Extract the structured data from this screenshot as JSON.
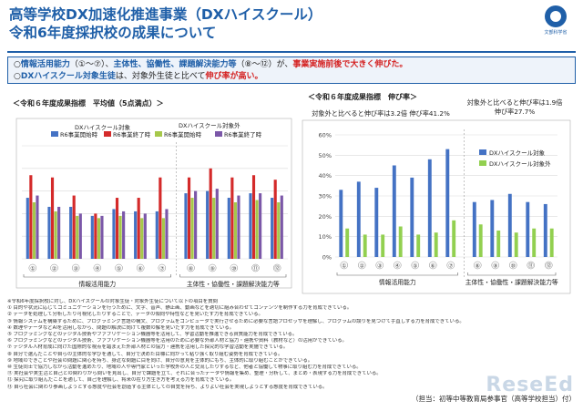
{
  "header": {
    "title_line1": "高等学校DX加速化推進事業（DXハイスクール）",
    "title_line2": "令和6年度採択校の成果について",
    "logo_text": "文部科学省"
  },
  "summary": {
    "line1_a": "○",
    "line1_b": "情報活用能力",
    "line1_c": "（①〜⑦）、",
    "line1_d": "主体性、協働性、課題解決能力等",
    "line1_e": "（⑧〜⑫）が、",
    "line1_f": "事業実施前後で大きく伸びた。",
    "line2_a": "○",
    "line2_b": "DXハイスクール対象生徒",
    "line2_c": "は、対象外生徒と比べて",
    "line2_d": "伸び率が高い。"
  },
  "left_panel": {
    "title": "＜令和６年度成果指標　平均値（5点満点）＞",
    "legend_title_a": "DXハイスクール対象",
    "legend_title_b": "DXハイスクール対象外",
    "group_labels": [
      "情報活用能力",
      "主体性・協働性・課題解決能力等"
    ]
  },
  "right_panel": {
    "title": "＜令和６年度成果指標　伸び率＞",
    "callout_a": "対象外と比べると伸び率は3.2倍  伸び率41.2%",
    "callout_b_1": "対象外と比べると伸び率は1.9倍",
    "callout_b_2": "伸び率27.7%",
    "group_labels": [
      "情報活用能力",
      "主体性・協働性・課題解決能力等"
    ]
  },
  "chart_data": [
    {
      "type": "bar",
      "title": "令和６年度成果指標　平均値（5点満点）",
      "categories": [
        "①",
        "②",
        "③",
        "④",
        "⑤",
        "⑥",
        "⑦",
        "⑧",
        "⑨",
        "⑩",
        "⑪",
        "⑫"
      ],
      "ylim": [
        0,
        5
      ],
      "grid": true,
      "legend_position": "top",
      "series": [
        {
          "name": "R6事業開始時",
          "color": "#4472c4",
          "values": [
            2.7,
            2.3,
            2.3,
            1.9,
            2.2,
            2.1,
            2.1,
            2.9,
            3.0,
            2.7,
            2.9,
            2.7
          ]
        },
        {
          "name": "R6事業終了時",
          "color": "#d42a2a",
          "values": [
            3.7,
            3.6,
            2.8,
            2.0,
            2.7,
            2.7,
            3.6,
            3.6,
            4.0,
            3.6,
            3.7,
            3.5
          ]
        },
        {
          "name": "R6事業開始時",
          "color": "#a6c84a",
          "values": [
            2.5,
            2.1,
            1.9,
            1.8,
            1.9,
            1.8,
            1.8,
            2.7,
            2.7,
            2.5,
            2.6,
            2.5
          ]
        },
        {
          "name": "R6事業終了時",
          "color": "#7b57a8",
          "values": [
            2.8,
            2.3,
            2.0,
            1.9,
            2.1,
            2.0,
            2.2,
            3.0,
            3.1,
            2.8,
            2.9,
            2.8
          ]
        }
      ]
    },
    {
      "type": "bar",
      "title": "令和６年度成果指標　伸び率",
      "categories": [
        "①",
        "②",
        "③",
        "④",
        "⑤",
        "⑥",
        "⑦",
        "⑧",
        "⑨",
        "⑩",
        "⑪",
        "⑫"
      ],
      "ylim": [
        0,
        0.6
      ],
      "yticks": [
        "0%",
        "10%",
        "20%",
        "30%",
        "40%",
        "50%",
        "60%"
      ],
      "grid": true,
      "legend_position": "top-right",
      "series": [
        {
          "name": "DXハイスクール対象",
          "color": "#4472c4",
          "values": [
            0.33,
            0.37,
            0.34,
            0.45,
            0.39,
            0.48,
            0.53,
            0.27,
            0.28,
            0.31,
            0.27,
            0.26
          ]
        },
        {
          "name": "DXハイスクール対象外",
          "color": "#92d050",
          "values": [
            0.14,
            0.11,
            0.11,
            0.15,
            0.11,
            0.12,
            0.18,
            0.16,
            0.13,
            0.12,
            0.14,
            0.14
          ]
        }
      ]
    }
  ],
  "notes": [
    "※令和6年度採択校に対し、DXハイスクールの対象生徒・対象外生徒について以下の項目を質問",
    "① 目的や状況に応じてコミュニケーションを行うために、文字、音声、静止画、動画などを適切に組み合わせてコンテンツを制作する力を育成できている。",
    "② データを処理して分析したり可視化したりすることで、データの傾向や特性などを見いだす力を育成できている。",
    "③ 情報システムを構築するために、プログラミング言語の構文、プログラムをコンピュータで実行させるために必要な言語プロセッサを理解し、プログラムの誤りを見つけて手直しする力を育成できている。",
    "④ 数理やデータなどAIを活用しながら、問題の解決に向けて複数の解を見いだす力を育成できている。",
    "⑤ プログラミングなどのデジタル技術やファブリケーション機器等を活用して、学習活動を推進できる資質能力を育成できている。",
    "⑥ プログラミングなどのデジタル技術、ファブリケーション機器等を活用のために必要な外部人材と協力・連携や資料（教材など）の活用ができている。",
    "⑦ デジタル人材育成に向けた国際的な視点を踏まえた外部人材との協力・連携を活用した探究的な学習活動を実施できている。",
    "⑧ 自分で選んだことや自らの主体的な学びを通して、自分で決めた目標に向かって粘り強く取り組む姿勢を育成できている。",
    "⑨ 地域のできごとや社会の問題に関心を持ち、身近な問題に目を向け、自分の意見を主体的にもち、主体的に取り組むことができている。",
    "⑩ 生徒同士で協力しながら活動を進めたり、地域の人や専門家といった学校外の人と交流したりするなど、他者と協働して物事に取り組む力を育成できている。",
    "⑪ 実社会や実生活と自己との関わりから問いを見出し、自分で課題を立て、それに合ったデータや情報を集め、整理・分析して、まとめ・表現する力を育成できている。",
    "⑫ 探究に取り組んだことを通して、自己を理解し、将来の在り方生き方を考える力を育成できている。",
    "⑬ 自ら社会に関わり参画しようとする態度や社会を創造する主体としての自覚を持ち、よりよい社会を実現しようとする態度を育成できている。"
  ],
  "footer": {
    "credit": "（担当：初等中等教育局参事官（高等学校担当）付）",
    "watermark": "ReseEd"
  }
}
